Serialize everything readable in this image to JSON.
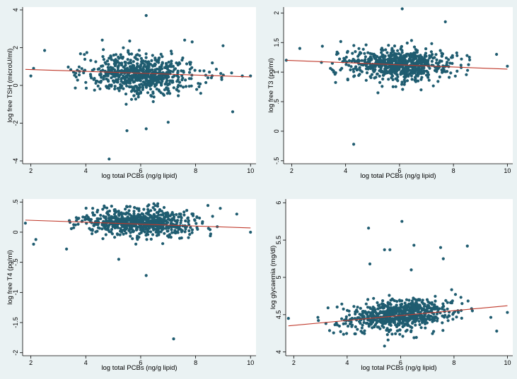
{
  "colors": {
    "background": "#eaf2f3",
    "plot_area": "#ffffff",
    "marker": "#1f5c70",
    "fit_line": "#c0392b"
  },
  "chart_data": [
    {
      "type": "scatter",
      "id": "tsh",
      "title": "",
      "xlabel": "log total PCBs (ng/g lipid)",
      "ylabel": "log free TSH (microU/ml)",
      "xlim": [
        1.7,
        10.2
      ],
      "ylim": [
        -4.15,
        4.15
      ],
      "xticks": [
        "2",
        "4",
        "6",
        "8",
        "10"
      ],
      "yticks": [
        "-4",
        "-2",
        "0",
        "2",
        "4"
      ],
      "ytick_values": [
        -4,
        -2,
        0,
        2,
        4
      ],
      "point_count": 700,
      "cloud": {
        "x_mean": 6.0,
        "x_sd": 1.0,
        "x_range": [
          1.8,
          10.0
        ],
        "y_mean": 0.58,
        "y_sd": 0.5,
        "slope": -0.05
      },
      "outliers": [
        [
          4.85,
          -3.9
        ],
        [
          6.2,
          3.7
        ],
        [
          5.5,
          -2.4
        ],
        [
          6.2,
          -2.3
        ],
        [
          7.0,
          -1.95
        ],
        [
          9.35,
          -1.4
        ],
        [
          9.0,
          2.1
        ],
        [
          7.6,
          2.4
        ],
        [
          4.6,
          2.4
        ],
        [
          5.6,
          2.35
        ],
        [
          2.5,
          1.85
        ],
        [
          2.0,
          0.5
        ],
        [
          9.7,
          0.5
        ],
        [
          10.0,
          0.5
        ],
        [
          2.1,
          0.9
        ]
      ],
      "fit": {
        "x": [
          1.8,
          10.0
        ],
        "y": [
          0.85,
          0.45
        ]
      }
    },
    {
      "type": "scatter",
      "id": "t3",
      "title": "",
      "xlabel": "log total PCBs (ng/g lipid)",
      "ylabel": "log free T3 (pg/ml)",
      "xlim": [
        1.7,
        10.2
      ],
      "ylim": [
        -0.55,
        2.1
      ],
      "xticks": [
        "2",
        "4",
        "6",
        "8",
        "10"
      ],
      "yticks": [
        "-.5",
        "0",
        ".5",
        "1",
        "1.5",
        "2"
      ],
      "ytick_values": [
        -0.5,
        0,
        0.5,
        1,
        1.5,
        2
      ],
      "point_count": 700,
      "cloud": {
        "x_mean": 6.0,
        "x_sd": 1.0,
        "x_range": [
          1.8,
          10.0
        ],
        "y_mean": 1.13,
        "y_sd": 0.13,
        "slope": -0.01
      },
      "outliers": [
        [
          4.3,
          -0.22
        ],
        [
          6.1,
          2.07
        ],
        [
          7.7,
          1.85
        ],
        [
          9.6,
          1.3
        ],
        [
          10.0,
          1.1
        ],
        [
          1.8,
          1.2
        ],
        [
          2.3,
          1.4
        ],
        [
          5.2,
          0.65
        ],
        [
          6.8,
          0.7
        ]
      ],
      "fit": {
        "x": [
          1.8,
          10.0
        ],
        "y": [
          1.2,
          1.05
        ]
      }
    },
    {
      "type": "scatter",
      "id": "t4",
      "title": "",
      "xlabel": "log total PCBs (ng/g lipid)",
      "ylabel": "log free T4 (pg/ml)",
      "xlim": [
        1.7,
        10.2
      ],
      "ylim": [
        -2.05,
        0.55
      ],
      "xticks": [
        "2",
        "4",
        "6",
        "8",
        "10"
      ],
      "yticks": [
        "-2",
        "-1.5",
        "-1",
        "-.5",
        "0",
        ".5"
      ],
      "ytick_values": [
        -2,
        -1.5,
        -1,
        -0.5,
        0,
        0.5
      ],
      "point_count": 700,
      "cloud": {
        "x_mean": 6.0,
        "x_sd": 1.0,
        "x_range": [
          1.8,
          10.0
        ],
        "y_mean": 0.15,
        "y_sd": 0.11,
        "slope": -0.01
      },
      "outliers": [
        [
          7.2,
          -1.77
        ],
        [
          6.2,
          -0.72
        ],
        [
          5.2,
          -0.45
        ],
        [
          2.1,
          -0.2
        ],
        [
          9.5,
          0.3
        ],
        [
          10.0,
          0.0
        ],
        [
          1.8,
          0.15
        ],
        [
          3.3,
          -0.28
        ]
      ],
      "fit": {
        "x": [
          1.8,
          10.0
        ],
        "y": [
          0.2,
          0.07
        ]
      }
    },
    {
      "type": "scatter",
      "id": "glycaemia",
      "title": "",
      "xlabel": "log total PCBs (ng/g lipid)",
      "ylabel": "log glycaemia (mg/dl)",
      "xlim": [
        1.7,
        10.2
      ],
      "ylim": [
        3.95,
        6.05
      ],
      "xticks": [
        "2",
        "4",
        "6",
        "8",
        "10"
      ],
      "yticks": [
        "4",
        "4.5",
        "5",
        "5.5",
        "6"
      ],
      "ytick_values": [
        4,
        4.5,
        5,
        5.5,
        6
      ],
      "point_count": 700,
      "cloud": {
        "x_mean": 6.0,
        "x_sd": 1.0,
        "x_range": [
          1.8,
          10.0
        ],
        "y_mean": 4.5,
        "y_sd": 0.1,
        "slope": 0.03
      },
      "outliers": [
        [
          6.05,
          5.75
        ],
        [
          4.8,
          5.66
        ],
        [
          5.4,
          5.37
        ],
        [
          5.6,
          5.37
        ],
        [
          6.5,
          5.43
        ],
        [
          7.5,
          5.4
        ],
        [
          8.5,
          5.42
        ],
        [
          7.6,
          5.25
        ],
        [
          4.85,
          5.18
        ],
        [
          6.4,
          5.1
        ],
        [
          1.8,
          4.45
        ],
        [
          10.0,
          4.53
        ],
        [
          9.6,
          4.28
        ],
        [
          5.4,
          4.08
        ]
      ],
      "fit": {
        "x": [
          1.8,
          10.0
        ],
        "y": [
          4.35,
          4.62
        ]
      }
    }
  ]
}
